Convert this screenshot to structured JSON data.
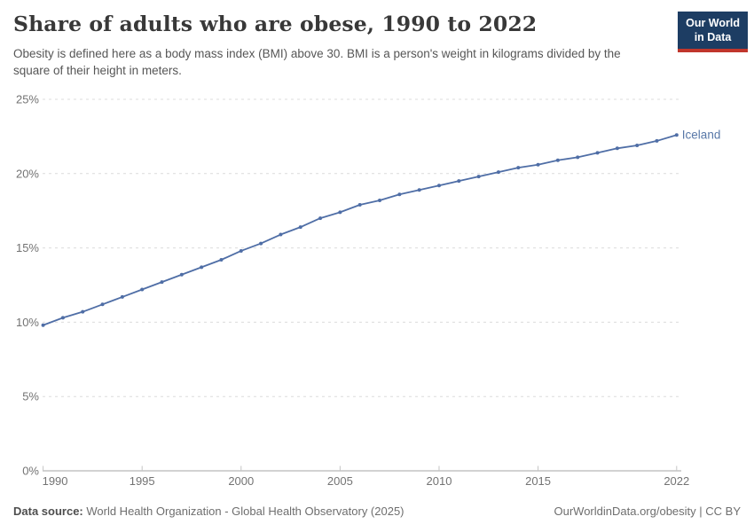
{
  "header": {
    "title": "Share of adults who are obese, 1990 to 2022",
    "subtitle": "Obesity is defined here as a body mass index (BMI) above 30. BMI is a person's weight in kilograms divided by the square of their height in meters.",
    "logo": {
      "line1": "Our World",
      "line2": "in Data",
      "bg_color": "#1d3d63",
      "accent_color": "#c0362c"
    }
  },
  "footer": {
    "source_label": "Data source:",
    "source_text": " World Health Organization - Global Health Observatory (2025)",
    "license_text": "OurWorldinData.org/obesity | CC BY"
  },
  "chart_data": {
    "type": "line",
    "title": "Share of adults who are obese, 1990 to 2022",
    "xlabel": "",
    "ylabel": "",
    "xlim": [
      1990,
      2022
    ],
    "ylim": [
      0,
      25
    ],
    "grid": "horizontal-dashed",
    "legend_position": "end-of-line-label",
    "x_ticks": [
      1990,
      1995,
      2000,
      2005,
      2010,
      2015,
      2022
    ],
    "y_ticks": [
      {
        "value": 0,
        "label": "0%"
      },
      {
        "value": 5,
        "label": "5%"
      },
      {
        "value": 10,
        "label": "10%"
      },
      {
        "value": 15,
        "label": "15%"
      },
      {
        "value": 20,
        "label": "20%"
      },
      {
        "value": 25,
        "label": "25%"
      }
    ],
    "series": [
      {
        "name": "Iceland",
        "color": "#4f6ea6",
        "label_color": "#5878a8",
        "x": [
          1990,
          1991,
          1992,
          1993,
          1994,
          1995,
          1996,
          1997,
          1998,
          1999,
          2000,
          2001,
          2002,
          2003,
          2004,
          2005,
          2006,
          2007,
          2008,
          2009,
          2010,
          2011,
          2012,
          2013,
          2014,
          2015,
          2016,
          2017,
          2018,
          2019,
          2020,
          2021,
          2022
        ],
        "values": [
          9.8,
          10.3,
          10.7,
          11.2,
          11.7,
          12.2,
          12.7,
          13.2,
          13.7,
          14.2,
          14.8,
          15.3,
          15.9,
          16.4,
          17.0,
          17.4,
          17.9,
          18.2,
          18.6,
          18.9,
          19.2,
          19.5,
          19.8,
          20.1,
          20.4,
          20.6,
          20.9,
          21.1,
          21.4,
          21.7,
          21.9,
          22.2,
          22.6
        ]
      }
    ],
    "style": {
      "grid_color": "#dcdcdc",
      "axis_line_color": "#a5a5a5",
      "tick_mark_color": "#c4c4c4",
      "tick_label_color": "#737373"
    }
  }
}
